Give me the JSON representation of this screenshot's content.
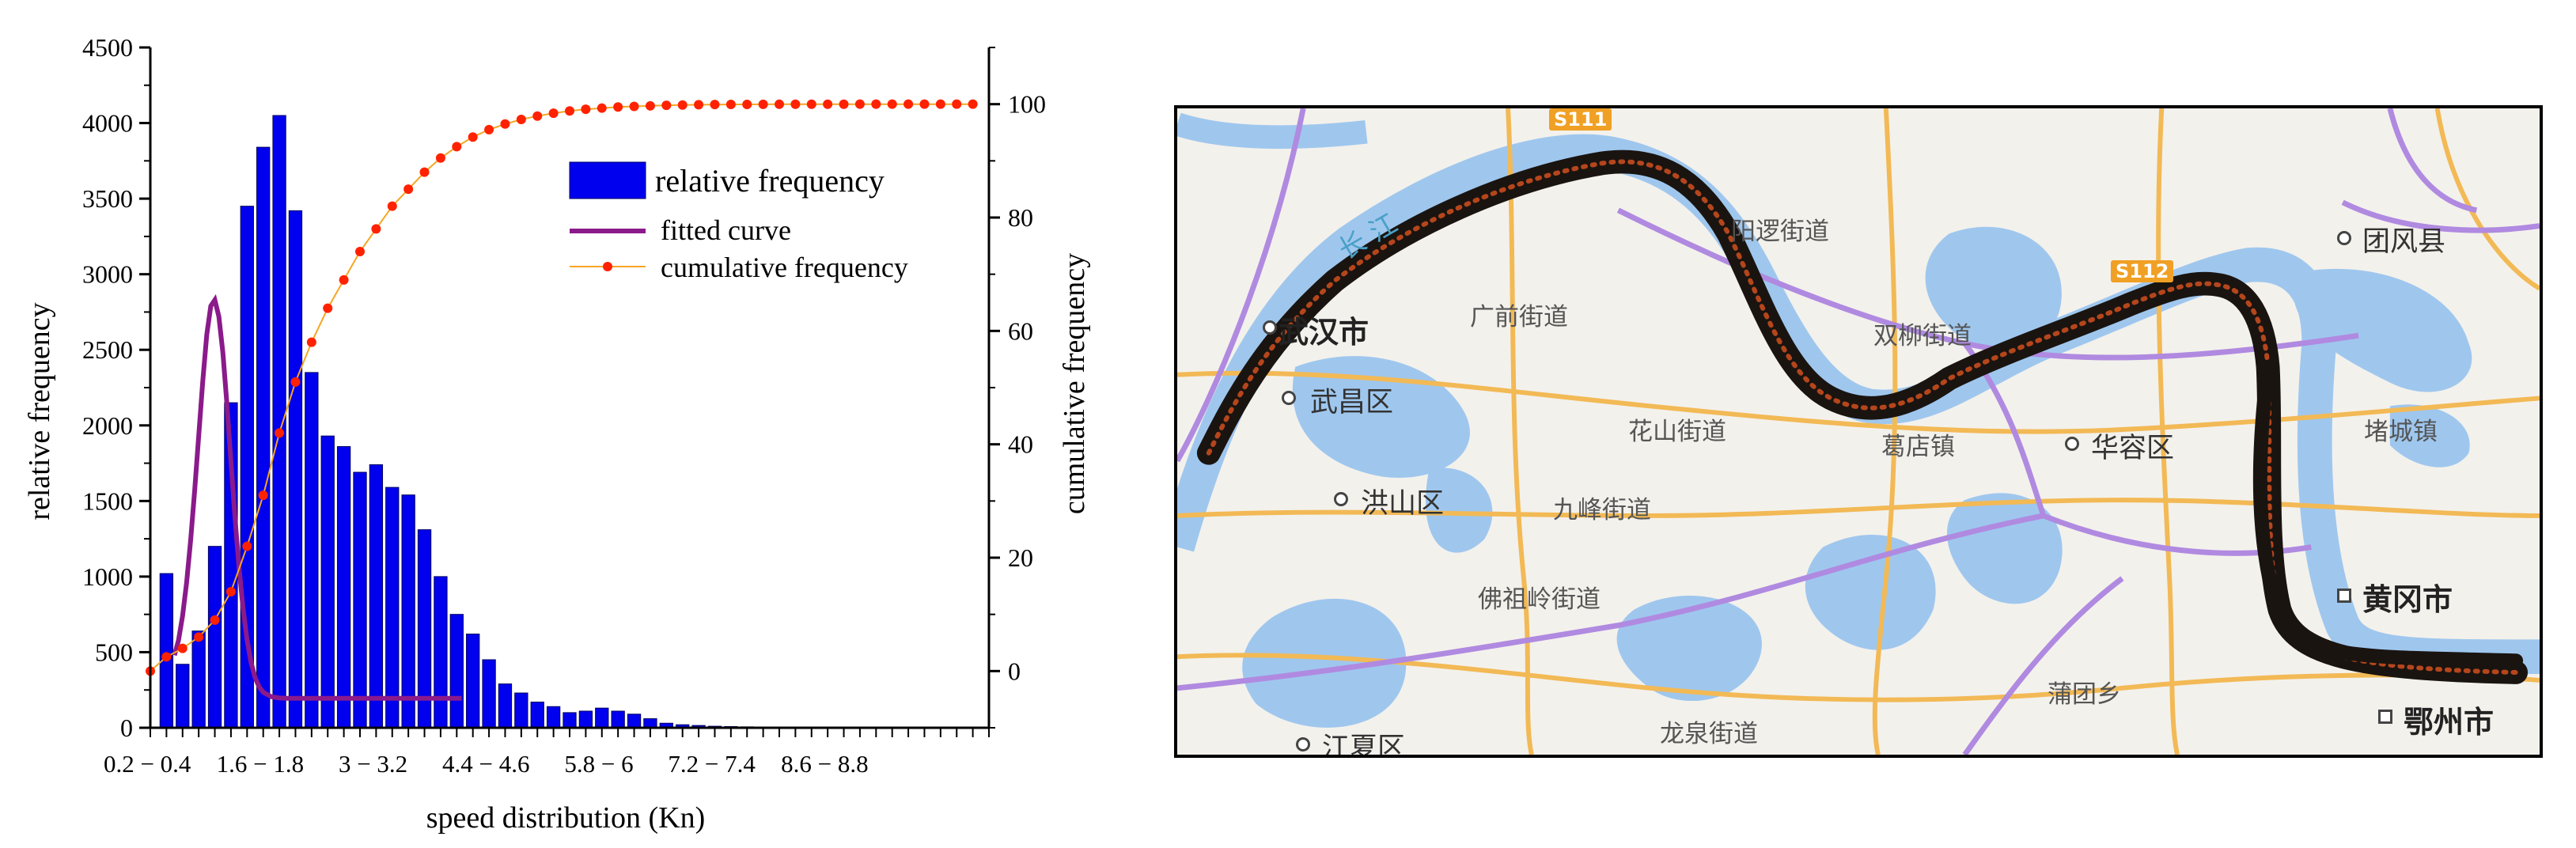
{
  "chart_data": {
    "type": "bar",
    "xlabel": "speed distribution (Kn)",
    "ylabel": "relative frequency",
    "y2label": "cumulative frequency",
    "ylim": [
      0,
      4500
    ],
    "y2lim": [
      -10,
      110
    ],
    "yticks": [
      0,
      500,
      1000,
      1500,
      2000,
      2500,
      3000,
      3500,
      4000,
      4500
    ],
    "y2ticks": [
      0,
      20,
      40,
      60,
      80,
      100
    ],
    "xtick_labels": [
      "0.2 − 0.4",
      "1.6 − 1.8",
      "3 − 3.2",
      "4.4 − 4.6",
      "5.8 − 6",
      "7.2 − 7.4",
      "8.6 − 8.8"
    ],
    "legend": {
      "position": "top-right",
      "entries": [
        "relative frequency",
        "fitted curve",
        "cumulative frequency"
      ]
    },
    "colors": {
      "bars": "#0000ee",
      "fitted": "#8b1a8b",
      "cumulative": "#ff2200",
      "cumulative_line": "#f5a623"
    },
    "series": [
      {
        "name": "relative frequency",
        "type": "bar",
        "values": [
          1020,
          420,
          640,
          1200,
          2150,
          3450,
          3840,
          4050,
          3420,
          2350,
          1930,
          1860,
          1690,
          1740,
          1590,
          1540,
          1310,
          1000,
          750,
          620,
          450,
          290,
          230,
          170,
          140,
          100,
          110,
          130,
          110,
          90,
          60,
          30,
          20,
          15,
          10,
          8,
          6,
          5,
          4,
          3
        ]
      },
      {
        "name": "fitted curve",
        "type": "line",
        "x": [
          2.0,
          2.5,
          3.0,
          3.5,
          4.0,
          4.5,
          5.0,
          5.5,
          6.0,
          6.5,
          7.0,
          7.5,
          8.0,
          8.5,
          9.0,
          9.5,
          10.0,
          10.5,
          11.0,
          11.5,
          12.0,
          12.5,
          13.0,
          14.0,
          15.0,
          16.0,
          18.0,
          20.0,
          22.0,
          24.0,
          26.0,
          28.0,
          30.0,
          32.0,
          34.0,
          36.0,
          37.6
        ],
        "values": [
          480,
          580,
          740,
          960,
          1240,
          1570,
          1930,
          2290,
          2600,
          2790,
          2830,
          2720,
          2480,
          2140,
          1760,
          1390,
          1060,
          790,
          580,
          430,
          330,
          270,
          235,
          205,
          197,
          195,
          195,
          195,
          195,
          195,
          195,
          195,
          195,
          195,
          195,
          195,
          195
        ]
      },
      {
        "name": "cumulative frequency",
        "type": "line",
        "axis": "y2",
        "x": [
          0,
          1,
          2,
          3,
          4,
          5,
          6,
          7,
          8,
          9,
          10,
          11,
          12,
          13,
          14,
          15,
          16,
          17,
          18,
          19,
          20,
          21,
          22,
          23,
          24,
          25,
          26,
          27,
          28,
          29,
          30,
          31,
          32,
          33,
          34,
          35,
          36,
          37,
          38,
          39,
          40,
          41,
          42,
          43,
          44,
          45,
          46,
          47,
          48,
          49,
          50,
          51
        ],
        "values": [
          0,
          2.5,
          4,
          6,
          9,
          14,
          22,
          31,
          42,
          51,
          58,
          64,
          69,
          74,
          78,
          82,
          85,
          88,
          90.5,
          92.5,
          94.2,
          95.5,
          96.5,
          97.3,
          97.9,
          98.4,
          98.8,
          99.1,
          99.3,
          99.5,
          99.6,
          99.7,
          99.8,
          99.85,
          99.9,
          99.93,
          99.95,
          99.96,
          99.97,
          99.98,
          99.985,
          99.99,
          99.99,
          99.995,
          100,
          100,
          100,
          100,
          100,
          100,
          100,
          100
        ]
      }
    ]
  },
  "map": {
    "labels": {
      "wuhan": "武汉市",
      "wuchang": "武昌区",
      "hongshan": "洪山区",
      "jiangxia": "江夏区",
      "guangqian": "广前街道",
      "huashan": "花山街道",
      "jiufeng": "九峰街道",
      "fozuling": "佛祖岭街道",
      "longquan": "龙泉街道",
      "yangluo": "阳逻街道",
      "shuangliu": "双柳街道",
      "gedian": "葛店镇",
      "huarong": "华容区",
      "putuan": "蒲团乡",
      "tuanfeng": "团风县",
      "zhucheng": "堵城镇",
      "huanggang": "黄冈市",
      "ezhou": "鄂州市",
      "changjiang": "长 江",
      "road1": "S111",
      "road2": "S112"
    }
  }
}
